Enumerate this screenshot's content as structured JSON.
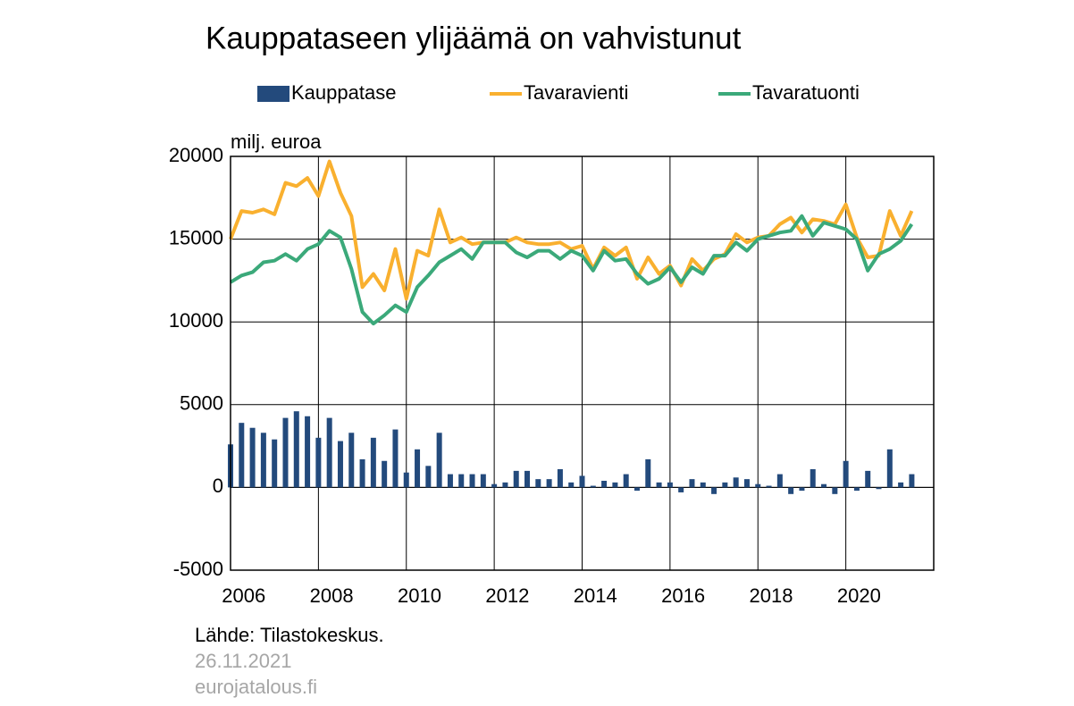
{
  "chart_data": {
    "type": "bar-line",
    "title": "Kauppataseen ylijäämä on vahvistunut",
    "y_label": "milj. euroa",
    "source": "Lähde:  Tilastokeskus.",
    "date": "26.11.2021",
    "site": "eurojatalous.fi",
    "xlim": [
      2006,
      2022
    ],
    "xticks": [
      2006,
      2008,
      2010,
      2012,
      2014,
      2016,
      2018,
      2020
    ],
    "ylim": [
      -5000,
      20000
    ],
    "yticks": [
      -5000,
      0,
      5000,
      10000,
      15000,
      20000
    ],
    "grid": true,
    "legend": "top",
    "x": [
      2006,
      2006.25,
      2006.5,
      2006.75,
      2007,
      2007.25,
      2007.5,
      2007.75,
      2008,
      2008.25,
      2008.5,
      2008.75,
      2009,
      2009.25,
      2009.5,
      2009.75,
      2010,
      2010.25,
      2010.5,
      2010.75,
      2011,
      2011.25,
      2011.5,
      2011.75,
      2012,
      2012.25,
      2012.5,
      2012.75,
      2013,
      2013.25,
      2013.5,
      2013.75,
      2014,
      2014.25,
      2014.5,
      2014.75,
      2015,
      2015.25,
      2015.5,
      2015.75,
      2016,
      2016.25,
      2016.5,
      2016.75,
      2017,
      2017.25,
      2017.5,
      2017.75,
      2018,
      2018.25,
      2018.5,
      2018.75,
      2019,
      2019.25,
      2019.5,
      2019.75,
      2020,
      2020.25,
      2020.5,
      2020.75,
      2021,
      2021.25,
      2021.5
    ],
    "series": [
      {
        "name": "Kauppatase",
        "type": "bar",
        "color": "#234a7c",
        "values": [
          2600,
          3900,
          3600,
          3300,
          2900,
          4200,
          4600,
          4300,
          3000,
          4200,
          2800,
          3300,
          1700,
          3000,
          1600,
          3500,
          900,
          2300,
          1300,
          3300,
          800,
          800,
          800,
          800,
          200,
          300,
          1000,
          1000,
          500,
          500,
          1100,
          300,
          700,
          100,
          400,
          300,
          800,
          -200,
          1700,
          300,
          300,
          -300,
          500,
          300,
          -400,
          300,
          600,
          500,
          200,
          100,
          800,
          -400,
          -200,
          1100,
          200,
          -400,
          1600,
          -200,
          1000,
          -100,
          2300,
          300,
          800
        ]
      },
      {
        "name": "Tavaravienti",
        "type": "line",
        "color": "#f9b02f",
        "values": [
          15000,
          16700,
          16600,
          16800,
          16500,
          18400,
          18200,
          18700,
          17600,
          19700,
          17800,
          16400,
          12100,
          12900,
          11900,
          14400,
          11400,
          14300,
          14000,
          16800,
          14800,
          15100,
          14700,
          14800,
          14800,
          14800,
          15100,
          14800,
          14700,
          14700,
          14800,
          14400,
          14600,
          13200,
          14500,
          14000,
          14500,
          12600,
          13900,
          12900,
          13400,
          12200,
          13800,
          13100,
          13800,
          14100,
          15300,
          14800,
          15100,
          15200,
          15900,
          16300,
          15400,
          16200,
          16100,
          15900,
          17100,
          15100,
          13900,
          14000,
          16700,
          15200,
          16700
        ]
      },
      {
        "name": "Tavaratuonti",
        "type": "line",
        "color": "#3ba97a",
        "values": [
          12400,
          12800,
          13000,
          13600,
          13700,
          14100,
          13700,
          14400,
          14700,
          15500,
          15100,
          13200,
          10600,
          9900,
          10400,
          11000,
          10600,
          12100,
          12800,
          13600,
          14000,
          14400,
          13800,
          14800,
          14800,
          14800,
          14200,
          13900,
          14300,
          14300,
          13800,
          14300,
          14000,
          13100,
          14300,
          13700,
          13800,
          12900,
          12300,
          12600,
          13300,
          12400,
          13300,
          12900,
          14000,
          14000,
          14800,
          14300,
          15000,
          15200,
          15400,
          15500,
          16400,
          15200,
          16000,
          15800,
          15600,
          15000,
          13100,
          14100,
          14400,
          14900,
          15900
        ]
      }
    ]
  }
}
